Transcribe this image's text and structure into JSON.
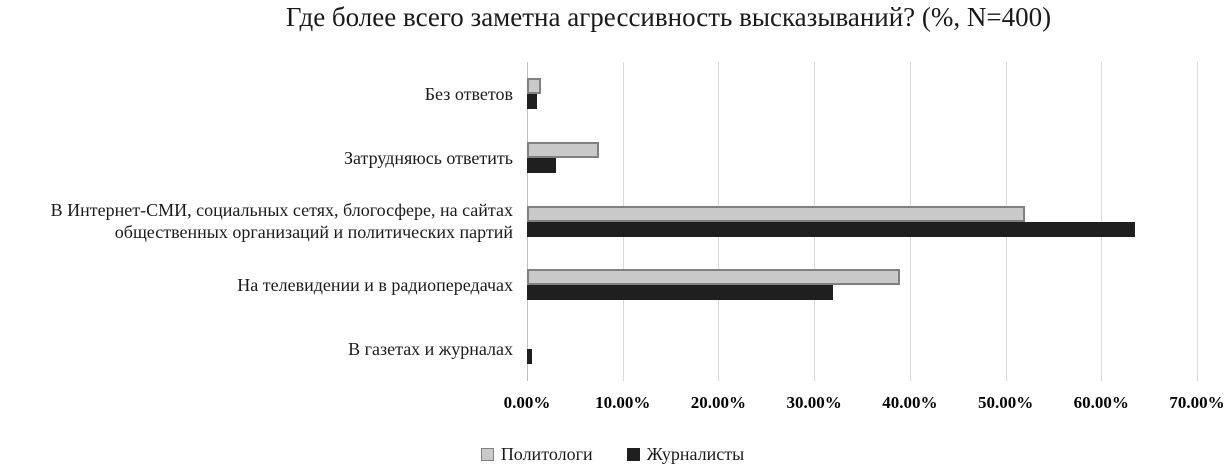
{
  "title": "Где более всего заметна агрессивность высказываний? (%, N=400)",
  "colors": {
    "background": "#ffffff",
    "gridline": "#d9d9d9",
    "zero_axis": "#bfbfbf",
    "series_politologi_fill": "#c9c9c9",
    "series_politologi_border": "#808080",
    "series_zhurnalisty_fill": "#1f1f1f",
    "text": "#1a1a1a"
  },
  "chart_data": {
    "type": "bar",
    "orientation": "horizontal",
    "title": "Где более всего заметна агрессивность высказываний? (%, N=400)",
    "categories": [
      "Без ответов",
      "Затрудняюсь ответить",
      "В Интернет-СМИ, социальных сетях, блогосфере, на сайтах общественных организаций и политических партий",
      "На телевидении и в радиопередачах",
      "В газетах и журналах"
    ],
    "series": [
      {
        "name": "Политологи",
        "fill": "#c9c9c9",
        "border": "#808080",
        "values": [
          1.5,
          7.5,
          52,
          39,
          0
        ]
      },
      {
        "name": "Журналисты",
        "fill": "#1f1f1f",
        "border": "#1f1f1f",
        "values": [
          1,
          3,
          63.5,
          32,
          0.5
        ]
      }
    ],
    "x_axis": {
      "min": 0,
      "max": 70,
      "step": 10,
      "tick_labels": [
        "0.00%",
        "10.00%",
        "20.00%",
        "30.00%",
        "40.00%",
        "50.00%",
        "60.00%",
        "70.00%"
      ]
    },
    "grid": true,
    "legend_position": "bottom",
    "category_order": "top-to-bottom"
  }
}
